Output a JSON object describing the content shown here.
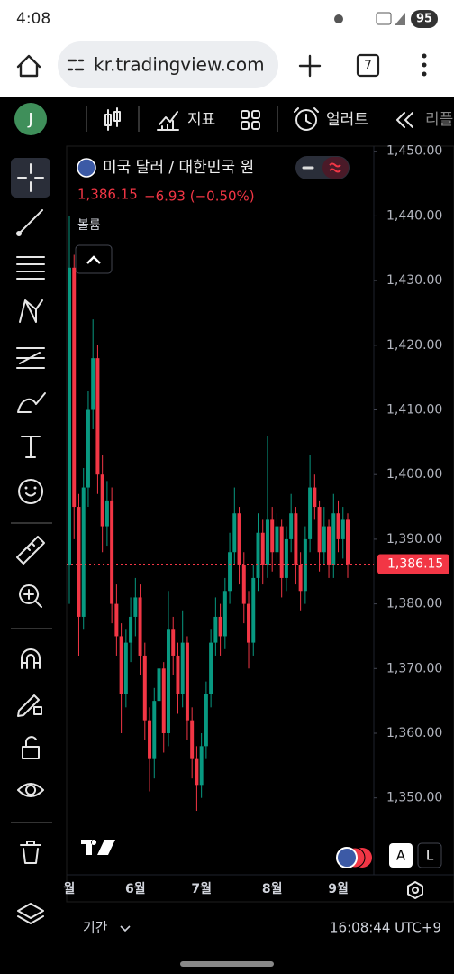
{
  "status_bar": {
    "time": "4:08",
    "battery": "95"
  },
  "browser": {
    "url": "kr.tradingview.com",
    "tab_count": "7"
  },
  "toolbar": {
    "avatar": "J",
    "indicators": "지표",
    "alerts": "얼러트",
    "replay": "리플레이"
  },
  "symbol": {
    "name": "미국 달러 / 대한민국 원",
    "price": "1,386.15",
    "change": "−6.93 (−0.50%)",
    "volume_label": "볼륨"
  },
  "chart_data": {
    "type": "candlestick",
    "categories": [
      "월",
      null,
      null,
      null,
      null,
      null,
      null,
      null,
      null,
      null,
      null,
      null,
      null,
      null,
      "6월",
      null,
      null,
      null,
      null,
      null,
      null,
      null,
      null,
      null,
      null,
      null,
      null,
      null,
      "7월",
      null,
      null,
      null,
      null,
      null,
      null,
      null,
      null,
      null,
      null,
      null,
      null,
      null,
      null,
      "8월",
      null,
      null,
      null,
      null,
      null,
      null,
      null,
      null,
      null,
      null,
      null,
      null,
      null,
      "9월",
      null,
      null
    ],
    "open": [
      1386,
      1432,
      1395,
      1378,
      1398,
      1410,
      1418,
      1400,
      1392,
      1396,
      1380,
      1375,
      1366,
      1374,
      1378,
      1381,
      1372,
      1362,
      1356,
      1365,
      1370,
      1360,
      1376,
      1372,
      1366,
      1374,
      1362,
      1356,
      1352,
      1358,
      1366,
      1374,
      1378,
      1375,
      1382,
      1388,
      1394,
      1386,
      1380,
      1374,
      1384,
      1391,
      1386,
      1393,
      1388,
      1392,
      1384,
      1390,
      1394,
      1386,
      1382,
      1390,
      1398,
      1395,
      1388,
      1392,
      1386,
      1394,
      1390,
      1393
    ],
    "high": [
      1440,
      1434,
      1397,
      1401,
      1413,
      1424,
      1420,
      1403,
      1399,
      1398,
      1383,
      1377,
      1376,
      1381,
      1384,
      1383,
      1374,
      1364,
      1367,
      1373,
      1371,
      1382,
      1378,
      1374,
      1379,
      1375,
      1364,
      1358,
      1360,
      1368,
      1376,
      1381,
      1380,
      1384,
      1391,
      1398,
      1395,
      1388,
      1382,
      1386,
      1394,
      1393,
      1406,
      1395,
      1394,
      1393,
      1392,
      1397,
      1395,
      1388,
      1392,
      1403,
      1400,
      1396,
      1395,
      1393,
      1397,
      1396,
      1395,
      1394
    ],
    "low": [
      1380,
      1390,
      1372,
      1376,
      1395,
      1407,
      1397,
      1388,
      1389,
      1377,
      1372,
      1360,
      1364,
      1371,
      1375,
      1369,
      1359,
      1351,
      1353,
      1362,
      1357,
      1358,
      1369,
      1363,
      1364,
      1359,
      1353,
      1348,
      1350,
      1356,
      1364,
      1372,
      1372,
      1373,
      1380,
      1386,
      1383,
      1377,
      1370,
      1372,
      1382,
      1383,
      1384,
      1385,
      1386,
      1381,
      1382,
      1388,
      1383,
      1379,
      1380,
      1388,
      1393,
      1385,
      1386,
      1384,
      1384,
      1388,
      1387,
      1384
    ],
    "close": [
      1432,
      1395,
      1378,
      1398,
      1410,
      1418,
      1400,
      1392,
      1396,
      1380,
      1375,
      1366,
      1374,
      1378,
      1381,
      1372,
      1362,
      1356,
      1365,
      1370,
      1360,
      1376,
      1372,
      1366,
      1374,
      1362,
      1356,
      1352,
      1358,
      1366,
      1374,
      1378,
      1375,
      1382,
      1388,
      1394,
      1386,
      1380,
      1374,
      1384,
      1391,
      1386,
      1393,
      1388,
      1392,
      1384,
      1390,
      1394,
      1386,
      1382,
      1390,
      1398,
      1395,
      1388,
      1392,
      1386,
      1394,
      1390,
      1393,
      1386.15
    ],
    "up_color": "#089981",
    "down_color": "#f23645",
    "ylim": [
      1338.1,
      1450.8
    ],
    "yticks": [
      {
        "value": 1350,
        "label": "1,350.00"
      },
      {
        "value": 1360,
        "label": "1,360.00"
      },
      {
        "value": 1370,
        "label": "1,370.00"
      },
      {
        "value": 1380,
        "label": "1,380.00"
      },
      {
        "value": 1390,
        "label": "1,390.00"
      },
      {
        "value": 1400,
        "label": "1,400.00"
      },
      {
        "value": 1410,
        "label": "1,410.00"
      },
      {
        "value": 1420,
        "label": "1,420.00"
      },
      {
        "value": 1430,
        "label": "1,430.00"
      },
      {
        "value": 1440,
        "label": "1,440.00"
      },
      {
        "value": 1450,
        "label": "1,450.00"
      }
    ],
    "last_price": {
      "value": 1386.15,
      "label": "1,386.15"
    },
    "grid": false
  },
  "scale_buttons": {
    "auto": "A",
    "log": "L"
  },
  "bottom_bar": {
    "range": "기간",
    "clock": "16:08:44 UTC+9"
  }
}
